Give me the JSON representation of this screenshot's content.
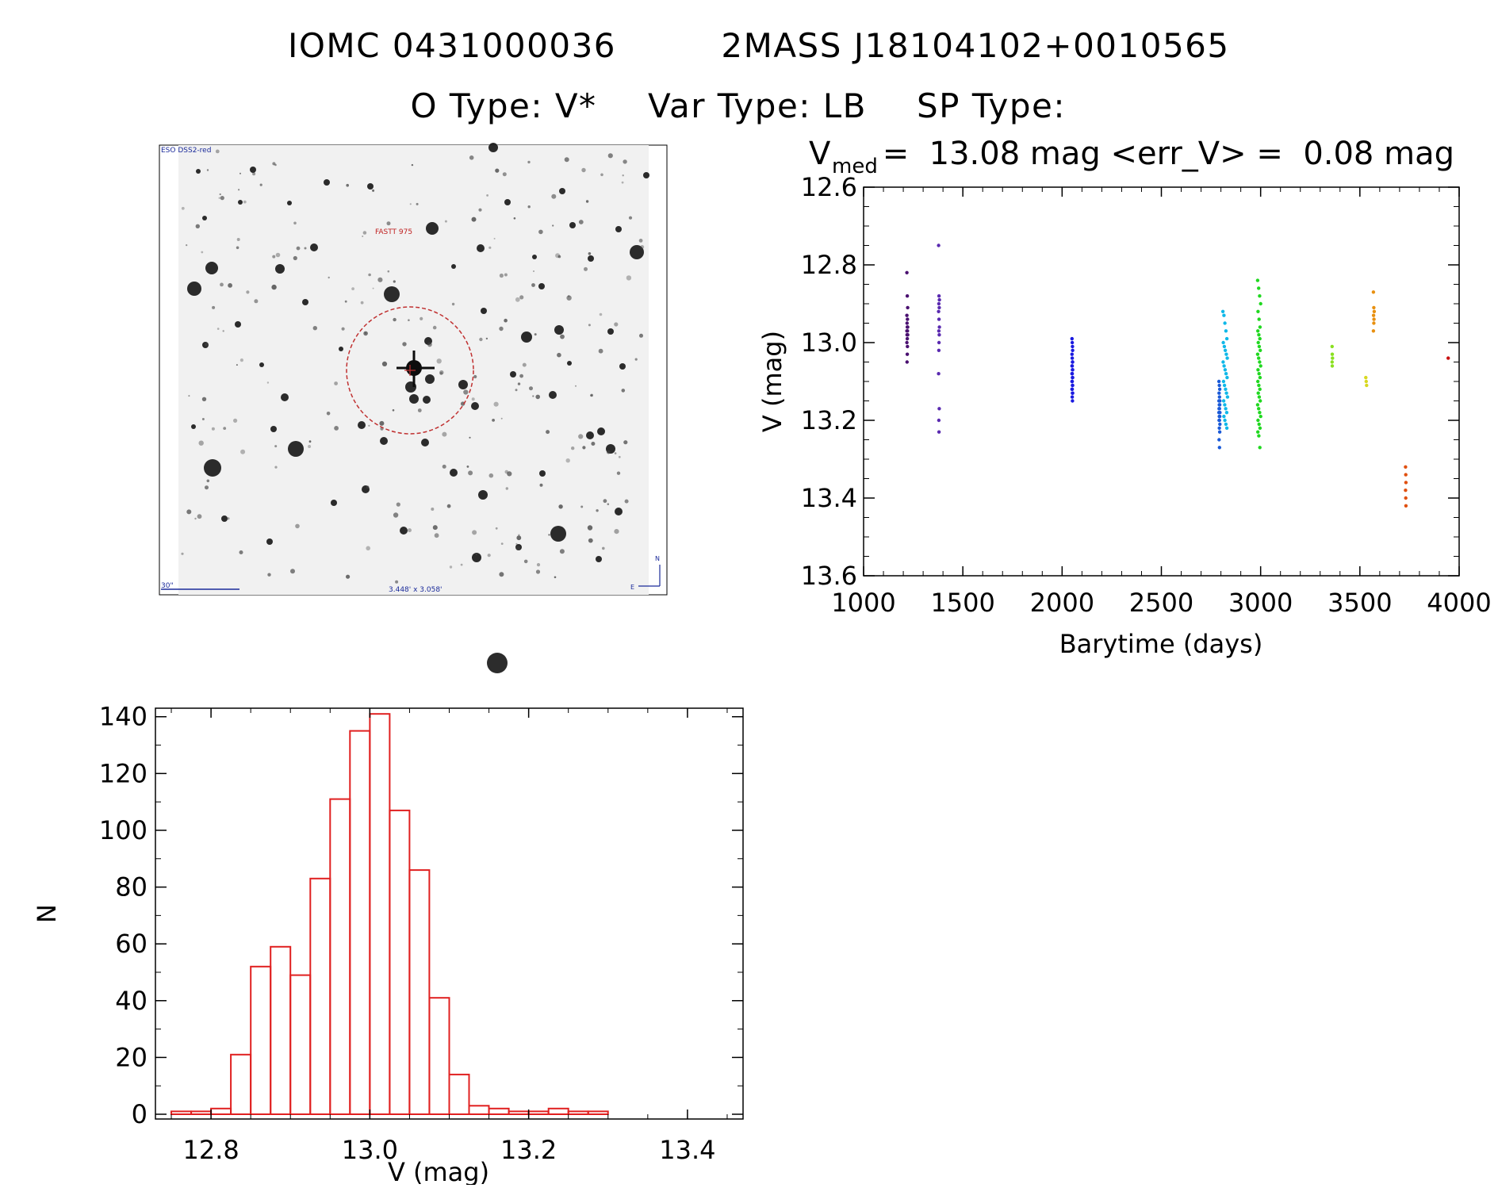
{
  "header": {
    "title_line1_id": "IOMC 0431000036",
    "title_line1_2mass": "2MASS J18104102+0010565",
    "title_line2_otype": "O Type: V*",
    "title_line2_vartype": "Var Type: LB",
    "title_line2_sptype": "SP Type:"
  },
  "finder": {
    "survey_label": "ESO DSS2-red",
    "target_label": "FASTT 975",
    "scale_label": "30\"",
    "fov_label": "3.448' x 3.058'",
    "north_label": "N",
    "east_label": "E",
    "colors": {
      "background": "#f2f2f2",
      "stars": "#111111",
      "circle": "#c03030",
      "labels_blue": "#1a2a9a",
      "labels_red": "#c02020"
    }
  },
  "chart_data": [
    {
      "type": "scatter",
      "title_prefix": "V",
      "title_subscript": "med",
      "title_rest": " =  13.08 mag <err_V> =  0.08 mag",
      "xlabel": "Barytime (days)",
      "ylabel": "V (mag)",
      "xlim": [
        1000,
        4000
      ],
      "ylim": [
        13.6,
        12.6
      ],
      "xticks": [
        1000,
        1500,
        2000,
        2500,
        3000,
        3500,
        4000
      ],
      "xtick_labels": [
        "1000",
        "1500",
        "2000",
        "2500",
        "3000",
        "3500",
        "4000"
      ],
      "yticks": [
        12.6,
        12.8,
        13.0,
        13.2,
        13.4,
        13.6
      ],
      "ytick_labels": [
        "12.6",
        "12.8",
        "13.0",
        "13.2",
        "13.4",
        "13.6"
      ],
      "groups": [
        {
          "color": "#4a1070",
          "x": [
            1218,
            1220,
            1222,
            1218,
            1221,
            1219,
            1222,
            1220,
            1218,
            1221,
            1219,
            1222,
            1220,
            1218,
            1221,
            1220,
            1219
          ],
          "y": [
            12.82,
            12.88,
            12.91,
            12.93,
            12.94,
            12.95,
            12.96,
            12.96,
            12.97,
            12.97,
            12.98,
            12.98,
            12.99,
            13.0,
            13.01,
            13.03,
            13.05
          ]
        },
        {
          "color": "#5a2ab0",
          "x": [
            1378,
            1380,
            1382,
            1379,
            1381,
            1378,
            1380,
            1382,
            1379,
            1381,
            1380,
            1379,
            1378,
            1381,
            1379,
            1380
          ],
          "y": [
            12.75,
            12.88,
            12.89,
            12.9,
            12.91,
            12.92,
            12.94,
            12.96,
            12.97,
            12.98,
            13.0,
            13.02,
            13.08,
            13.17,
            13.2,
            13.23
          ]
        },
        {
          "color": "#1a1ae0",
          "x": [
            2050,
            2051,
            2052,
            2053,
            2050,
            2051,
            2052,
            2053,
            2050,
            2051,
            2052,
            2053,
            2050,
            2051,
            2052,
            2053,
            2050,
            2051,
            2052,
            2053,
            2050,
            2051,
            2052,
            2053,
            2051,
            2052
          ],
          "y": [
            12.99,
            13.0,
            13.01,
            13.02,
            13.03,
            13.04,
            13.05,
            13.05,
            13.06,
            13.06,
            13.07,
            13.07,
            13.08,
            13.08,
            13.09,
            13.09,
            13.1,
            13.1,
            13.11,
            13.11,
            13.12,
            13.12,
            13.13,
            13.13,
            13.14,
            13.15
          ]
        },
        {
          "color": "#1a5ad8",
          "x": [
            2790,
            2792,
            2794,
            2791,
            2793,
            2795,
            2790,
            2792,
            2794,
            2791,
            2793,
            2795,
            2790,
            2792,
            2794,
            2791,
            2793,
            2795,
            2792,
            2794,
            2791,
            2793
          ],
          "y": [
            13.1,
            13.11,
            13.12,
            13.13,
            13.14,
            13.15,
            13.15,
            13.16,
            13.16,
            13.17,
            13.17,
            13.18,
            13.18,
            13.19,
            13.19,
            13.2,
            13.2,
            13.21,
            13.22,
            13.23,
            13.25,
            13.27
          ]
        },
        {
          "color": "#10b8e8",
          "x": [
            2810,
            2815,
            2820,
            2825,
            2830,
            2812,
            2817,
            2822,
            2827,
            2832,
            2811,
            2816,
            2821,
            2826,
            2831,
            2813,
            2818,
            2823,
            2828,
            2833,
            2814,
            2819,
            2824,
            2829,
            2815,
            2820,
            2825,
            2830
          ],
          "y": [
            12.92,
            12.93,
            12.95,
            12.97,
            12.99,
            13.0,
            13.01,
            13.02,
            13.03,
            13.04,
            13.05,
            13.06,
            13.07,
            13.08,
            13.09,
            13.1,
            13.11,
            13.12,
            13.13,
            13.14,
            13.15,
            13.16,
            13.17,
            13.18,
            13.19,
            13.2,
            13.21,
            13.22
          ]
        },
        {
          "color": "#20d820",
          "x": [
            2985,
            2990,
            2995,
            3000,
            2987,
            2992,
            2997,
            2986,
            2991,
            2996,
            2988,
            2993,
            2998,
            2985,
            2990,
            2995,
            3000,
            2987,
            2992,
            2997,
            2986,
            2991,
            2996,
            2988,
            2993,
            2998,
            2985,
            2990,
            2995,
            3000,
            2987,
            2992,
            2997,
            2986,
            2991,
            2996
          ],
          "y": [
            12.84,
            12.86,
            12.88,
            12.9,
            12.92,
            12.94,
            12.96,
            12.97,
            12.98,
            12.99,
            13.0,
            13.01,
            13.02,
            13.03,
            13.04,
            13.05,
            13.06,
            13.07,
            13.08,
            13.09,
            13.1,
            13.11,
            13.12,
            13.13,
            13.14,
            13.15,
            13.16,
            13.17,
            13.18,
            13.19,
            13.2,
            13.21,
            13.22,
            13.23,
            13.24,
            13.27
          ]
        },
        {
          "color": "#8ae020",
          "x": [
            3360,
            3361,
            3362,
            3360,
            3361
          ],
          "y": [
            13.01,
            13.03,
            13.04,
            13.05,
            13.06
          ]
        },
        {
          "color": "#d8d820",
          "x": [
            3530,
            3532,
            3534
          ],
          "y": [
            13.09,
            13.1,
            13.11
          ]
        },
        {
          "color": "#e89010",
          "x": [
            3568,
            3570,
            3572,
            3569,
            3571,
            3570,
            3568
          ],
          "y": [
            12.87,
            12.91,
            12.92,
            12.93,
            12.94,
            12.95,
            12.97
          ]
        },
        {
          "color": "#e05010",
          "x": [
            3730,
            3731,
            3732,
            3730,
            3731,
            3732
          ],
          "y": [
            13.32,
            13.34,
            13.36,
            13.38,
            13.4,
            13.42
          ]
        },
        {
          "color": "#c81010",
          "x": [
            3945
          ],
          "y": [
            13.04
          ]
        }
      ]
    },
    {
      "type": "histogram",
      "xlabel": "V (mag)",
      "ylabel": "N",
      "xlim": [
        12.75,
        13.45
      ],
      "ylim": [
        0,
        143
      ],
      "bin_start": 12.75,
      "bin_width": 0.025,
      "counts": [
        1,
        1,
        2,
        21,
        52,
        59,
        49,
        83,
        111,
        135,
        141,
        107,
        86,
        41,
        14,
        3,
        2,
        1,
        1,
        2,
        1,
        1
      ],
      "bar_color": "#e02020",
      "xticks": [
        12.8,
        13.0,
        13.2,
        13.4
      ],
      "xtick_labels": [
        "12.8",
        "13.0",
        "13.2",
        "13.4"
      ],
      "yticks": [
        0,
        20,
        40,
        60,
        80,
        100,
        120,
        140
      ],
      "ytick_labels": [
        "0",
        "20",
        "40",
        "60",
        "80",
        "100",
        "120",
        "140"
      ]
    }
  ]
}
